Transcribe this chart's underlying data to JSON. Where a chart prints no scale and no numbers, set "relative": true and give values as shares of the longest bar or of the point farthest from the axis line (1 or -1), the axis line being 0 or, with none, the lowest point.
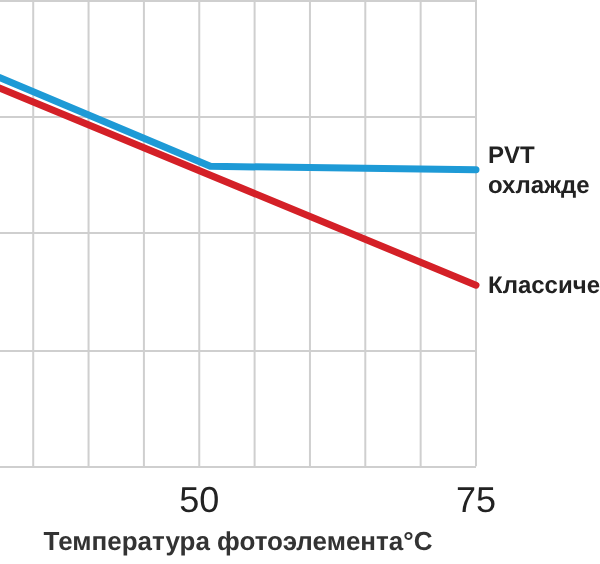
{
  "chart_data": {
    "type": "line",
    "relative": true,
    "xlabel": "Температура фотоэлемента°C",
    "xlim": [
      32,
      75
    ],
    "xticks": [
      {
        "value": 35,
        "label": null
      },
      {
        "value": 40,
        "label": null
      },
      {
        "value": 45,
        "label": null
      },
      50,
      {
        "value": 55,
        "label": null
      },
      {
        "value": 60,
        "label": null
      },
      {
        "value": 65,
        "label": null
      },
      {
        "value": 70,
        "label": null
      },
      75
    ],
    "grid": true,
    "legend": false,
    "marker": "none",
    "line_style": "solid",
    "series": [
      {
        "name": "PVT\nохлажде",
        "color": "#1e9ad6",
        "x": [
          32,
          51,
          75
        ],
        "values": [
          1,
          0.772,
          0.763
        ]
      },
      {
        "name": "Классиче",
        "color": "#d42027",
        "x": [
          32,
          75
        ],
        "values": [
          0.973,
          0.466
        ]
      }
    ]
  }
}
